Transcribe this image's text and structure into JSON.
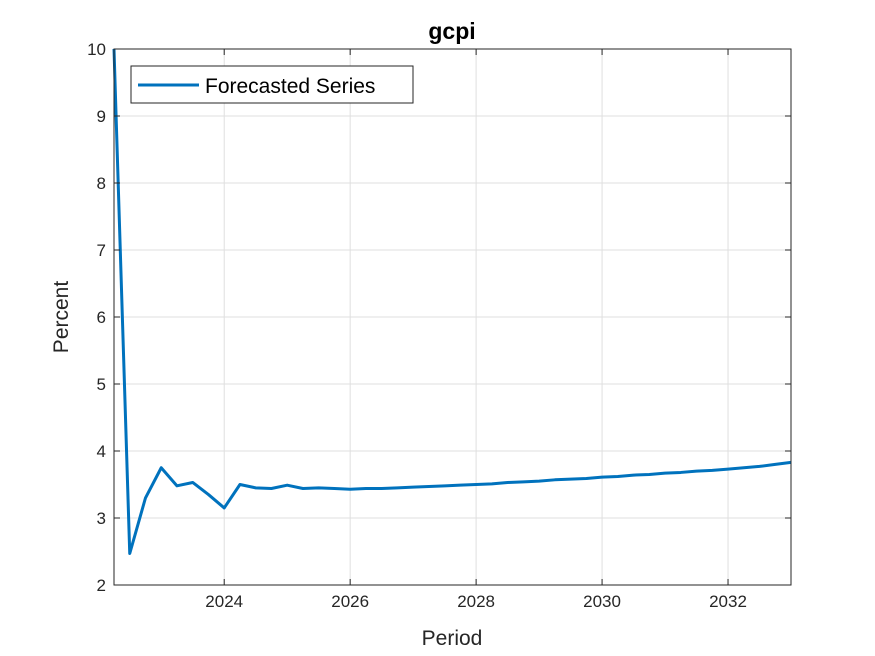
{
  "chart_data": {
    "type": "line",
    "title": "gcpi",
    "xlabel": "Period",
    "ylabel": "Percent",
    "xlim": [
      2022.25,
      2033.0
    ],
    "ylim": [
      2,
      10
    ],
    "xticks": [
      2024,
      2026,
      2028,
      2030,
      2032
    ],
    "yticks": [
      2,
      3,
      4,
      5,
      6,
      7,
      8,
      9,
      10
    ],
    "grid": true,
    "legend_position": "top-left",
    "series": [
      {
        "name": "Forecasted Series",
        "color": "#0072BD",
        "x": [
          2022.25,
          2022.5,
          2022.75,
          2023.0,
          2023.25,
          2023.5,
          2023.75,
          2024.0,
          2024.25,
          2024.5,
          2024.75,
          2025.0,
          2025.25,
          2025.5,
          2025.75,
          2026.0,
          2026.25,
          2026.5,
          2026.75,
          2027.0,
          2027.25,
          2027.5,
          2027.75,
          2028.0,
          2028.25,
          2028.5,
          2028.75,
          2029.0,
          2029.25,
          2029.5,
          2029.75,
          2030.0,
          2030.25,
          2030.5,
          2030.75,
          2031.0,
          2031.25,
          2031.5,
          2031.75,
          2032.0,
          2032.25,
          2032.5,
          2032.75,
          2033.0
        ],
        "values": [
          10.0,
          2.47,
          3.3,
          3.75,
          3.48,
          3.53,
          3.35,
          3.15,
          3.5,
          3.45,
          3.44,
          3.49,
          3.44,
          3.45,
          3.44,
          3.43,
          3.44,
          3.44,
          3.45,
          3.46,
          3.47,
          3.48,
          3.49,
          3.5,
          3.51,
          3.53,
          3.54,
          3.55,
          3.57,
          3.58,
          3.59,
          3.61,
          3.62,
          3.64,
          3.65,
          3.67,
          3.68,
          3.7,
          3.71,
          3.73,
          3.75,
          3.77,
          3.8,
          3.83
        ]
      }
    ]
  }
}
